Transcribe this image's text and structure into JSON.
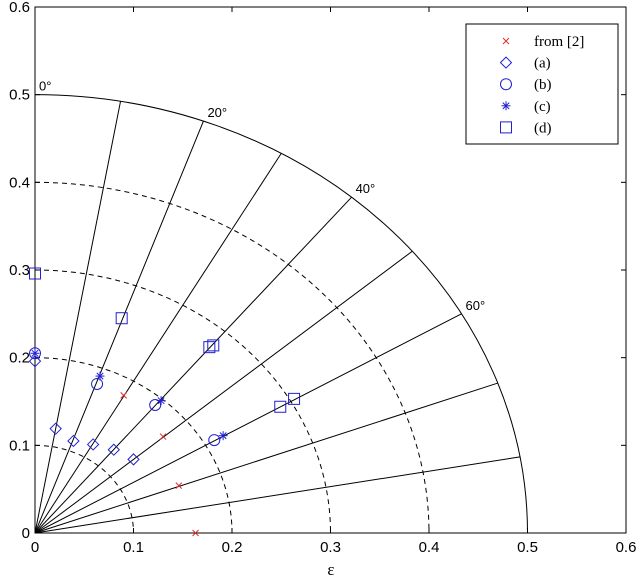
{
  "chart_data": {
    "type": "scatter",
    "title": "",
    "xlabel": "ε",
    "ylabel": "",
    "xlim": [
      0,
      0.6
    ],
    "ylim": [
      0,
      0.6
    ],
    "xticks": [
      "0",
      "0.1",
      "0.2",
      "0.3",
      "0.4",
      "0.5",
      "0.6"
    ],
    "yticks": [
      "0",
      "0.1",
      "0.2",
      "0.3",
      "0.4",
      "0.5",
      "0.6"
    ],
    "grid": false,
    "legend_position": "top-right",
    "polar_overlay": {
      "outer_radius": 0.5,
      "dashed_radii": [
        0.1,
        0.2,
        0.3,
        0.4
      ],
      "ray_step_deg": 10,
      "angle_labels": [
        {
          "deg": 0,
          "text": "0°"
        },
        {
          "deg": 20,
          "text": "20°"
        },
        {
          "deg": 40,
          "text": "40°"
        },
        {
          "deg": 60,
          "text": "60°"
        }
      ]
    },
    "series": [
      {
        "name": "from [2]",
        "marker": "x",
        "color": "#e03030",
        "points": [
          [
            0.09,
            0.157
          ],
          [
            0.13,
            0.11
          ],
          [
            0.146,
            0.054
          ],
          [
            0.163,
            0.0
          ]
        ]
      },
      {
        "name": "(a)",
        "marker": "diamond",
        "color": "#2020d0",
        "points": [
          [
            0.0,
            0.196
          ],
          [
            0.021,
            0.119
          ],
          [
            0.039,
            0.105
          ],
          [
            0.059,
            0.101
          ],
          [
            0.08,
            0.095
          ],
          [
            0.1,
            0.084
          ]
        ]
      },
      {
        "name": "(b)",
        "marker": "circle",
        "color": "#2020d0",
        "points": [
          [
            0.0,
            0.205
          ],
          [
            0.063,
            0.17
          ],
          [
            0.122,
            0.146
          ],
          [
            0.182,
            0.106
          ]
        ]
      },
      {
        "name": "(c)",
        "marker": "star",
        "color": "#2020d0",
        "points": [
          [
            0.0,
            0.205
          ],
          [
            0.066,
            0.179
          ],
          [
            0.128,
            0.151
          ],
          [
            0.191,
            0.111
          ]
        ]
      },
      {
        "name": "(d)",
        "marker": "square",
        "color": "#2020d0",
        "points": [
          [
            0.0,
            0.296
          ],
          [
            0.088,
            0.245
          ],
          [
            0.177,
            0.212
          ],
          [
            0.181,
            0.214
          ],
          [
            0.249,
            0.144
          ],
          [
            0.263,
            0.153
          ]
        ]
      }
    ]
  }
}
